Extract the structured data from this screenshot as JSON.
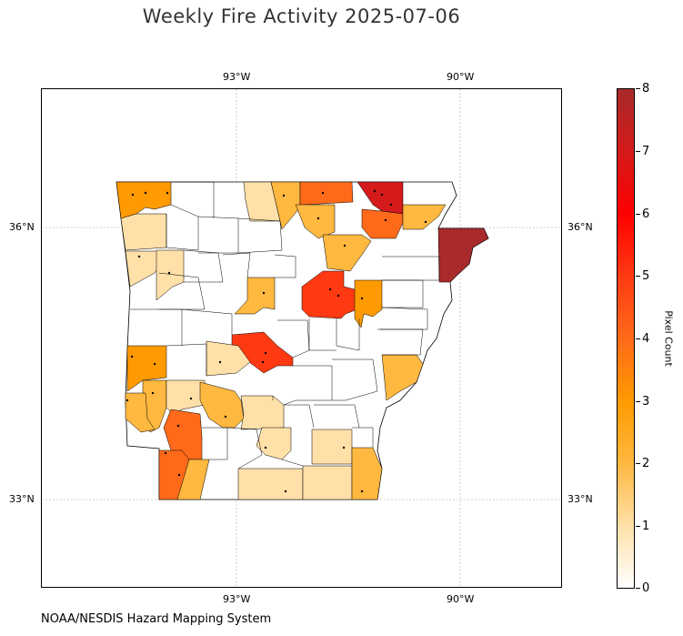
{
  "title": "Weekly Fire Activity 2025-07-06",
  "credit": "NOAA/NESDIS Hazard Mapping System",
  "map": {
    "region": "Arkansas counties",
    "lon_ticks": [
      "93°W",
      "90°W"
    ],
    "lat_ticks": [
      "36°N",
      "33°N"
    ],
    "gridlines": true
  },
  "colorbar": {
    "label": "Pixel Count",
    "min": 0,
    "max": 8,
    "ticks": [
      "0",
      "1",
      "2",
      "3",
      "4",
      "5",
      "6",
      "7",
      "8"
    ],
    "colors": [
      "#ffffff",
      "#ffe0a8",
      "#ffb840",
      "#ff9a00",
      "#ff6a1a",
      "#ff3a12",
      "#ff0000",
      "#d41a1a",
      "#a82a2a"
    ]
  }
}
